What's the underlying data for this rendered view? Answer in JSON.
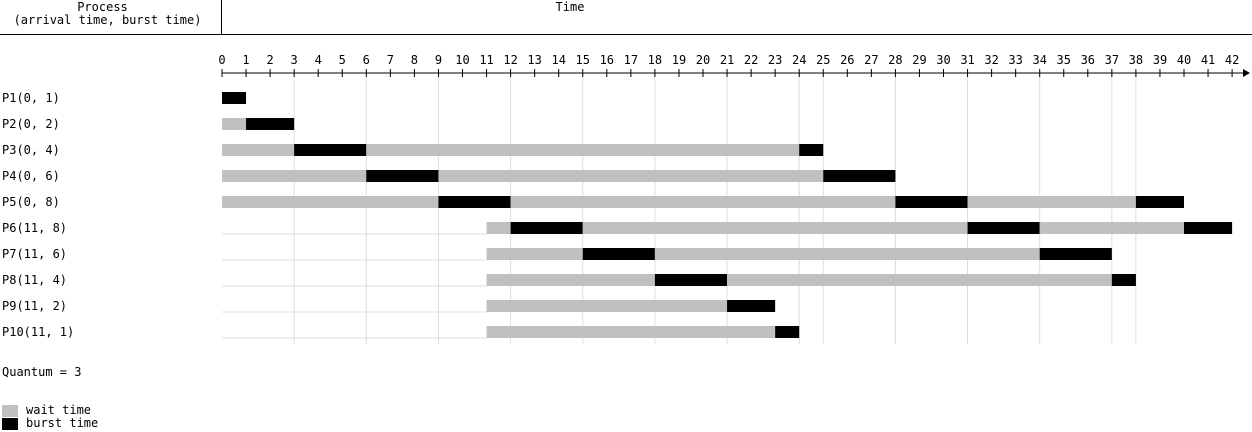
{
  "header": {
    "process_line1": "Process",
    "process_line2": "(arrival time, burst time)",
    "time": "Time"
  },
  "quantum_text": "Quantum = 3",
  "legend": {
    "wait": "wait time",
    "burst": "burst time"
  },
  "colors": {
    "wait": "#c0c0c0",
    "burst": "#000000",
    "gridline": "#dddddd",
    "axis": "#000000"
  },
  "chart_data": {
    "type": "gantt",
    "x_ticks": [
      0,
      1,
      2,
      3,
      4,
      5,
      6,
      7,
      8,
      9,
      10,
      11,
      12,
      13,
      14,
      15,
      16,
      17,
      18,
      19,
      20,
      21,
      22,
      23,
      24,
      25,
      26,
      27,
      28,
      29,
      30,
      31,
      32,
      33,
      34,
      35,
      36,
      37,
      38,
      39,
      40,
      41,
      42
    ],
    "xlim": [
      0,
      42
    ],
    "vertical_gridlines_at": [
      3,
      6,
      9,
      12,
      15,
      18,
      21,
      24,
      25,
      28,
      31,
      34,
      37,
      38
    ],
    "processes": [
      {
        "label": "P1(0, 1)",
        "segments": [
          {
            "kind": "burst",
            "start": 0,
            "end": 1
          }
        ]
      },
      {
        "label": "P2(0, 2)",
        "segments": [
          {
            "kind": "wait",
            "start": 0,
            "end": 1
          },
          {
            "kind": "burst",
            "start": 1,
            "end": 3
          }
        ]
      },
      {
        "label": "P3(0, 4)",
        "segments": [
          {
            "kind": "wait",
            "start": 0,
            "end": 3
          },
          {
            "kind": "burst",
            "start": 3,
            "end": 6
          },
          {
            "kind": "wait",
            "start": 6,
            "end": 24
          },
          {
            "kind": "burst",
            "start": 24,
            "end": 25
          }
        ]
      },
      {
        "label": "P4(0, 6)",
        "segments": [
          {
            "kind": "wait",
            "start": 0,
            "end": 6
          },
          {
            "kind": "burst",
            "start": 6,
            "end": 9
          },
          {
            "kind": "wait",
            "start": 9,
            "end": 25
          },
          {
            "kind": "burst",
            "start": 25,
            "end": 28
          }
        ]
      },
      {
        "label": "P5(0, 8)",
        "segments": [
          {
            "kind": "wait",
            "start": 0,
            "end": 9
          },
          {
            "kind": "burst",
            "start": 9,
            "end": 12
          },
          {
            "kind": "wait",
            "start": 12,
            "end": 28
          },
          {
            "kind": "burst",
            "start": 28,
            "end": 31
          },
          {
            "kind": "wait",
            "start": 31,
            "end": 38
          },
          {
            "kind": "burst",
            "start": 38,
            "end": 40
          }
        ]
      },
      {
        "label": "P6(11, 8)",
        "segments": [
          {
            "kind": "wait",
            "start": 11,
            "end": 12
          },
          {
            "kind": "burst",
            "start": 12,
            "end": 15
          },
          {
            "kind": "wait",
            "start": 15,
            "end": 31
          },
          {
            "kind": "burst",
            "start": 31,
            "end": 34
          },
          {
            "kind": "wait",
            "start": 34,
            "end": 40
          },
          {
            "kind": "burst",
            "start": 40,
            "end": 42
          }
        ]
      },
      {
        "label": "P7(11, 6)",
        "segments": [
          {
            "kind": "wait",
            "start": 11,
            "end": 15
          },
          {
            "kind": "burst",
            "start": 15,
            "end": 18
          },
          {
            "kind": "wait",
            "start": 18,
            "end": 34
          },
          {
            "kind": "burst",
            "start": 34,
            "end": 37
          }
        ]
      },
      {
        "label": "P8(11, 4)",
        "segments": [
          {
            "kind": "wait",
            "start": 11,
            "end": 18
          },
          {
            "kind": "burst",
            "start": 18,
            "end": 21
          },
          {
            "kind": "wait",
            "start": 21,
            "end": 37
          },
          {
            "kind": "burst",
            "start": 37,
            "end": 38
          }
        ]
      },
      {
        "label": "P9(11, 2)",
        "segments": [
          {
            "kind": "wait",
            "start": 11,
            "end": 21
          },
          {
            "kind": "burst",
            "start": 21,
            "end": 23
          }
        ]
      },
      {
        "label": "P10(11, 1)",
        "segments": [
          {
            "kind": "wait",
            "start": 11,
            "end": 23
          },
          {
            "kind": "burst",
            "start": 23,
            "end": 24
          }
        ]
      }
    ]
  }
}
